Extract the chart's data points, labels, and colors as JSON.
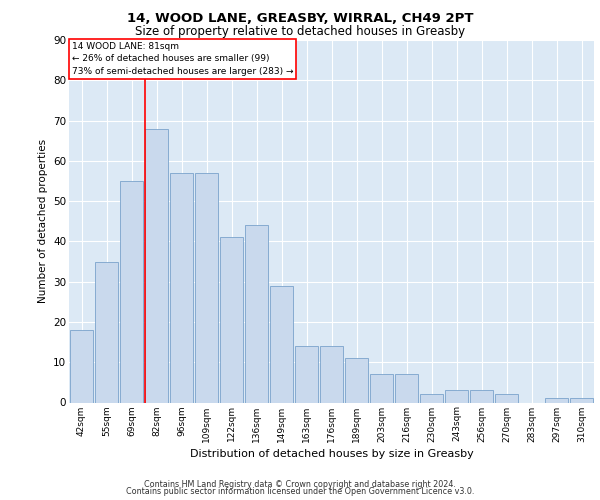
{
  "title1": "14, WOOD LANE, GREASBY, WIRRAL, CH49 2PT",
  "title2": "Size of property relative to detached houses in Greasby",
  "xlabel": "Distribution of detached houses by size in Greasby",
  "ylabel": "Number of detached properties",
  "categories": [
    "42sqm",
    "55sqm",
    "69sqm",
    "82sqm",
    "96sqm",
    "109sqm",
    "122sqm",
    "136sqm",
    "149sqm",
    "163sqm",
    "176sqm",
    "189sqm",
    "203sqm",
    "216sqm",
    "230sqm",
    "243sqm",
    "256sqm",
    "270sqm",
    "283sqm",
    "297sqm",
    "310sqm"
  ],
  "values": [
    18,
    35,
    55,
    68,
    57,
    57,
    41,
    44,
    29,
    14,
    14,
    11,
    7,
    7,
    2,
    3,
    3,
    2,
    0,
    1,
    1
  ],
  "bar_color": "#c9d9ed",
  "bar_edge_color": "#7aa3cc",
  "annotation_label": "14 WOOD LANE: 81sqm",
  "annotation_line1": "← 26% of detached houses are smaller (99)",
  "annotation_line2": "73% of semi-detached houses are larger (283) →",
  "ylim": [
    0,
    90
  ],
  "yticks": [
    0,
    10,
    20,
    30,
    40,
    50,
    60,
    70,
    80,
    90
  ],
  "plot_bg_color": "#dce9f5",
  "footer1": "Contains HM Land Registry data © Crown copyright and database right 2024.",
  "footer2": "Contains public sector information licensed under the Open Government Licence v3.0."
}
